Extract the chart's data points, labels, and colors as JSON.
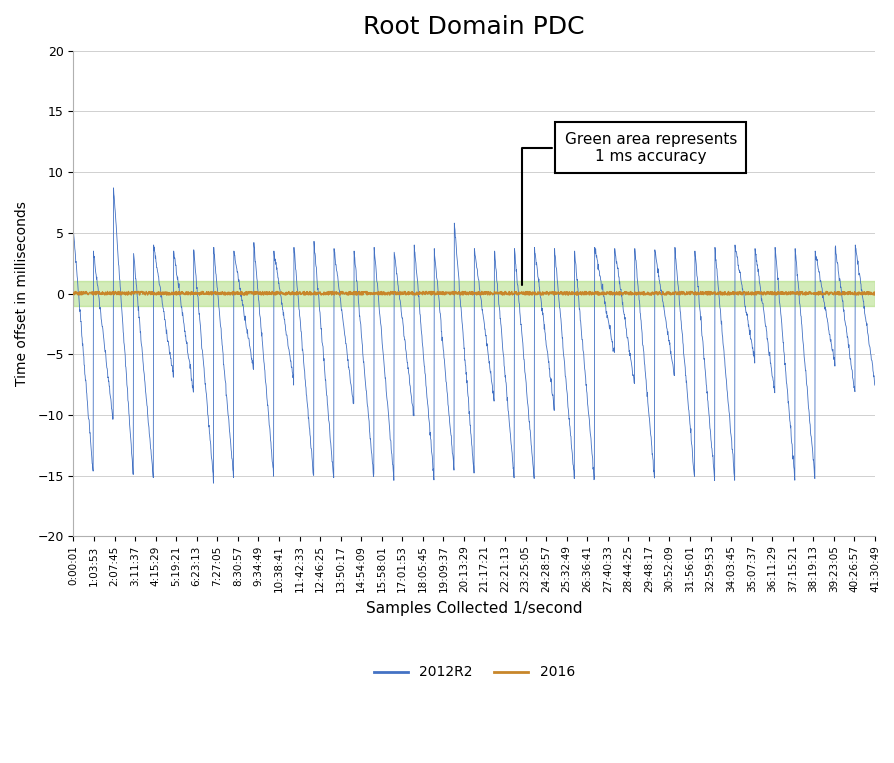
{
  "title": "Root Domain PDC",
  "xlabel": "Samples Collected 1/second",
  "ylabel": "Time offset in milliseconds",
  "ylim": [
    -20,
    20
  ],
  "yticks": [
    -20,
    -15,
    -10,
    -5,
    0,
    5,
    10,
    15,
    20
  ],
  "green_band_lower": -1,
  "green_band_upper": 1,
  "green_band_color": "#92d050",
  "green_band_alpha": 0.4,
  "orange_line_color": "#C8862A",
  "blue_line_color": "#4472C4",
  "annotation_text": "Green area represents\n1 ms accuracy",
  "legend_2012": "2012R2",
  "legend_2016": "2016",
  "n_samples": 2400,
  "background_color": "#ffffff",
  "x_labels": [
    "0:00:01",
    "1:03:53",
    "2:07:45",
    "3:11:37",
    "4:15:29",
    "5:19:21",
    "6:23:13",
    "7:27:05",
    "8:30:57",
    "9:34:49",
    "10:38:41",
    "11:42:33",
    "12:46:25",
    "13:50:17",
    "14:54:09",
    "15:58:01",
    "17:01:53",
    "18:05:45",
    "19:09:37",
    "20:13:29",
    "21:17:21",
    "22:21:13",
    "23:25:05",
    "24:28:57",
    "25:32:49",
    "26:36:41",
    "27:40:33",
    "28:44:25",
    "29:48:17",
    "30:52:09",
    "31:56:01",
    "32:59:53",
    "34:03:45",
    "35:07:37",
    "36:11:29",
    "37:15:21",
    "38:19:13",
    "39:23:05",
    "40:26:57",
    "41:30:49"
  ],
  "cycle_peaks": [
    5.2,
    3.5,
    8.7,
    3.3,
    4.0,
    3.5,
    3.6,
    3.8,
    3.5,
    4.2,
    3.5,
    3.8,
    4.3,
    3.7,
    3.5,
    3.8,
    3.4,
    4.0,
    3.7,
    5.8,
    3.7,
    3.5,
    3.7,
    3.8,
    3.7,
    3.5,
    3.8,
    3.7,
    3.7,
    3.6,
    3.8,
    3.5,
    3.8,
    4.0,
    3.7,
    3.8,
    3.7,
    3.5,
    3.8,
    4.0
  ],
  "cycle_troughs": [
    -14.8,
    -10.5,
    -15.0,
    -15.2,
    -6.8,
    -8.0,
    -15.2,
    -15.0,
    -6.2,
    -15.0,
    -7.2,
    -15.2,
    -15.3,
    -9.3,
    -15.2,
    -15.3,
    -10.2,
    -15.2,
    -14.5,
    -14.8,
    -8.8,
    -15.2,
    -15.2,
    -9.5,
    -15.2,
    -15.3,
    -5.0,
    -7.5,
    -15.2,
    -6.8,
    -15.2,
    -15.3,
    -15.2,
    -5.5,
    -8.2,
    -15.2,
    -15.3,
    -5.8,
    -8.2,
    -7.5
  ]
}
